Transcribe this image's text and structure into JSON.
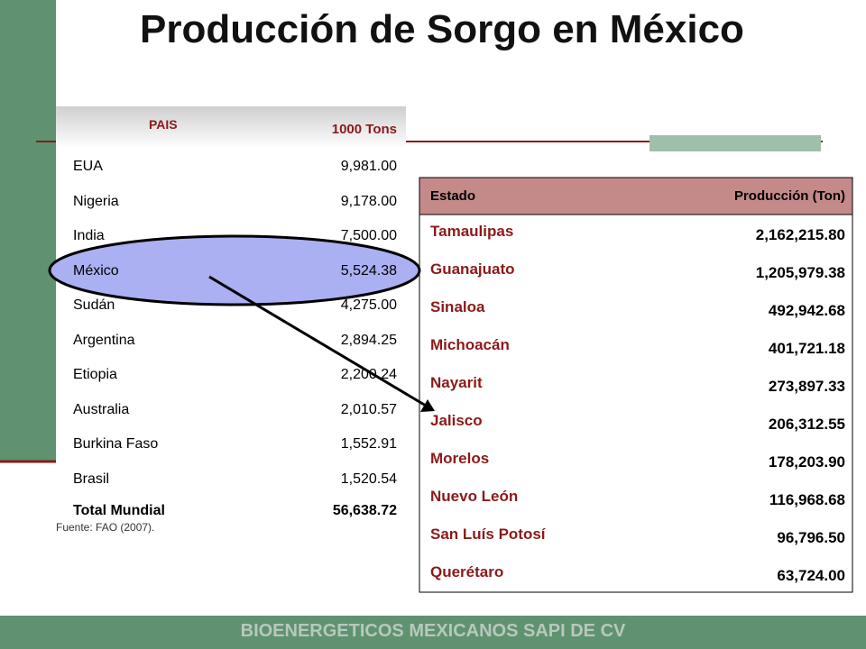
{
  "title": "Producción de Sorgo en México",
  "world_table": {
    "headers": [
      "PAIS",
      "1000 Tons"
    ],
    "rows": [
      [
        "EUA",
        "9,981.00"
      ],
      [
        "Nigeria",
        "9,178.00"
      ],
      [
        "India",
        "7,500.00"
      ],
      [
        "México",
        "5,524.38"
      ],
      [
        "Sudán",
        "4,275.00"
      ],
      [
        "Argentina",
        "2,894.25"
      ],
      [
        "Etiopia",
        "2,200.24"
      ],
      [
        "Australia",
        "2,010.57"
      ],
      [
        "Burkina Faso",
        "1,552.91"
      ],
      [
        "Brasil",
        "1,520.54"
      ]
    ],
    "total": [
      "Total Mundial",
      "56,638.72"
    ],
    "source": "Fuente: FAO (2007)."
  },
  "mexico_table": {
    "headers": [
      "Estado",
      "Producción (Ton)"
    ],
    "rows": [
      [
        "Tamaulipas",
        "2,162,215.80"
      ],
      [
        "Guanajuato",
        "1,205,979.38"
      ],
      [
        "Sinaloa",
        "492,942.68"
      ],
      [
        "Michoacán",
        "401,721.18"
      ],
      [
        "Nayarit",
        "273,897.33"
      ],
      [
        "Jalisco",
        "206,312.55"
      ],
      [
        "Morelos",
        "178,203.90"
      ],
      [
        "Nuevo León",
        "116,968.68"
      ],
      [
        "San Luís Potosí",
        "96,796.50"
      ],
      [
        "Querétaro",
        "63,724.00"
      ]
    ]
  },
  "footer": "BIOENERGETICOS MEXICANOS SAPI DE CV"
}
